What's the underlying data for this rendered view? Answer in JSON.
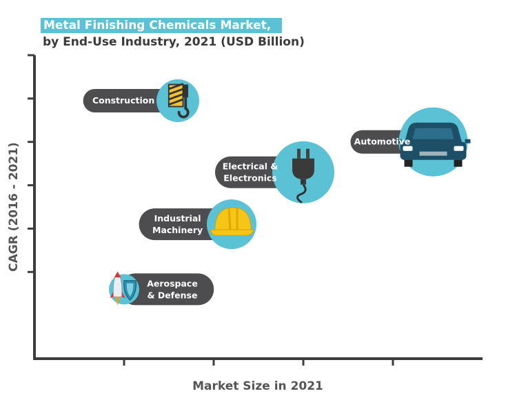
{
  "title": {
    "line1": "Metal Finishing Chemicals Market,",
    "line2": "by End-Use Industry, 2021 (USD Billion)"
  },
  "colors": {
    "accent": "#5bc2d6",
    "label_bg": "#4d4d4f",
    "axis": "#3d3d3d"
  },
  "chart_data": {
    "type": "scatter",
    "title": "Metal Finishing Chemicals Market, by End-Use Industry, 2021 (USD Billion)",
    "xlabel": "Market Size in 2021",
    "ylabel": "CAGR (2016 - 2021)",
    "xlim": [
      0,
      5
    ],
    "ylim": [
      0,
      7
    ],
    "grid": false,
    "series": [
      {
        "name": "Construction",
        "lines": [
          "Construction"
        ],
        "x": 1.6,
        "y": 5.95,
        "icon": "crane-hook-icon",
        "label_side": "left"
      },
      {
        "name": "Automotive",
        "lines": [
          "Automotive"
        ],
        "x": 4.45,
        "y": 5.0,
        "icon": "car-icon",
        "label_side": "left"
      },
      {
        "name": "Electrical & Electronics",
        "lines": [
          "Electrical &",
          "Electronics"
        ],
        "x": 3.0,
        "y": 4.3,
        "icon": "power-plug-icon",
        "label_side": "left"
      },
      {
        "name": "Industrial Machinery",
        "lines": [
          "Industrial",
          "Machinery"
        ],
        "x": 2.2,
        "y": 3.1,
        "icon": "hard-hat-icon",
        "label_side": "left"
      },
      {
        "name": "Aerospace & Defense",
        "lines": [
          "Aerospace",
          "& Defense"
        ],
        "x": 1.0,
        "y": 1.6,
        "icon": "rocket-shield-icon",
        "label_side": "right"
      }
    ]
  }
}
